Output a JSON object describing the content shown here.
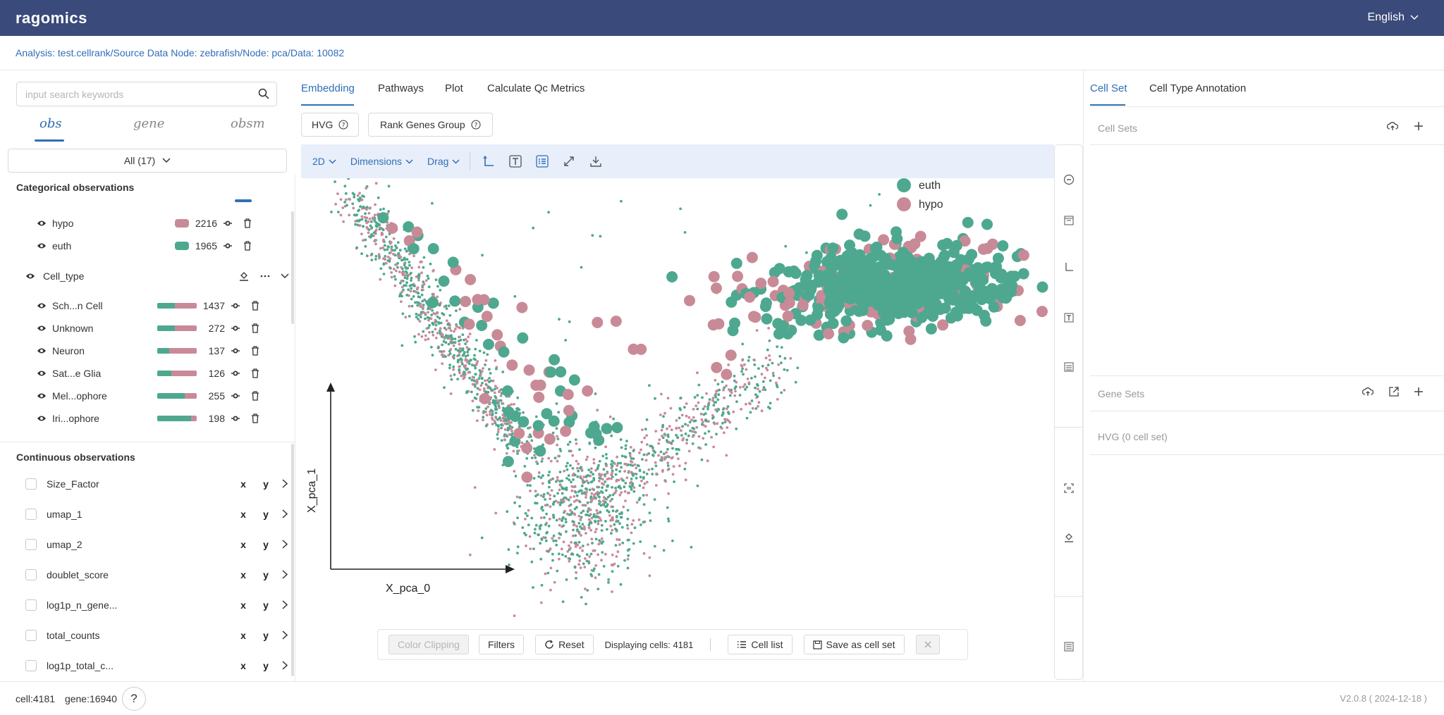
{
  "app": {
    "logo": "ragomics",
    "language": "English"
  },
  "breadcrumb": "Analysis: test.cellrank/Source Data Node: zebrafish/Node: pca/Data: 10082",
  "left": {
    "search_placeholder": "input search keywords",
    "tabs": [
      "obs",
      "gene",
      "obsm"
    ],
    "active_tab": "obs",
    "filter_select": "All (17)",
    "categorical_title": "Categorical observations",
    "categories": [
      {
        "label": "hypo",
        "count": "2216",
        "color": "#c98a97"
      },
      {
        "label": "euth",
        "count": "1965",
        "color": "#4ea890"
      }
    ],
    "group_label": "Cell_type",
    "group_items": [
      {
        "label": "Sch...n Cell",
        "count": "1437",
        "green_fraction": 0.45
      },
      {
        "label": "Unknown",
        "count": "272",
        "green_fraction": 0.45
      },
      {
        "label": "Neuron",
        "count": "137",
        "green_fraction": 0.3
      },
      {
        "label": "Sat...e Glia",
        "count": "126",
        "green_fraction": 0.35
      },
      {
        "label": "Mel...ophore",
        "count": "255",
        "green_fraction": 0.7
      },
      {
        "label": "Iri...ophore",
        "count": "198",
        "green_fraction": 0.85
      }
    ],
    "continuous_title": "Continuous observations",
    "continuous": [
      "Size_Factor",
      "umap_1",
      "umap_2",
      "doublet_score",
      "log1p_n_gene...",
      "total_counts",
      "log1p_total_c..."
    ],
    "x_label": "x",
    "y_label": "y"
  },
  "center": {
    "tabs": [
      "Embedding",
      "Pathways",
      "Plot",
      "Calculate Qc Metrics"
    ],
    "active_tab": "Embedding",
    "buttons": {
      "hvg": "HVG",
      "rank_genes": "Rank Genes Group"
    },
    "toolbar": {
      "dim_mode": "2D",
      "dimensions": "Dimensions",
      "drag": "Drag"
    },
    "bottom": {
      "color_clipping": "Color Clipping",
      "filters": "Filters",
      "reset": "Reset",
      "displaying": "Displaying cells: 4181",
      "cell_list": "Cell list",
      "save_cell_set": "Save as cell set"
    }
  },
  "chart_data": {
    "type": "scatter",
    "title": "",
    "xlabel": "X_pca_0",
    "ylabel": "X_pca_1",
    "grid": false,
    "legend_placement": "top-right",
    "series": [
      {
        "name": "euth",
        "color": "#4ea890"
      },
      {
        "name": "hypo",
        "color": "#c98a97"
      }
    ]
  },
  "right": {
    "tabs": [
      "Cell Set",
      "Cell Type Annotation"
    ],
    "active_tab": "Cell Set",
    "cell_sets_title": "Cell Sets",
    "gene_sets_title": "Gene Sets",
    "gene_set_items": [
      "HVG (0 cell set)"
    ]
  },
  "footer": {
    "cells": "cell:4181",
    "genes": "gene:16940",
    "help": "?",
    "version": "V2.0.8 ( 2024-12-18 )"
  },
  "colors": {
    "accent": "#2f6fb6",
    "header": "#3a4a7a",
    "euth": "#4ea890",
    "hypo": "#c98a97"
  }
}
